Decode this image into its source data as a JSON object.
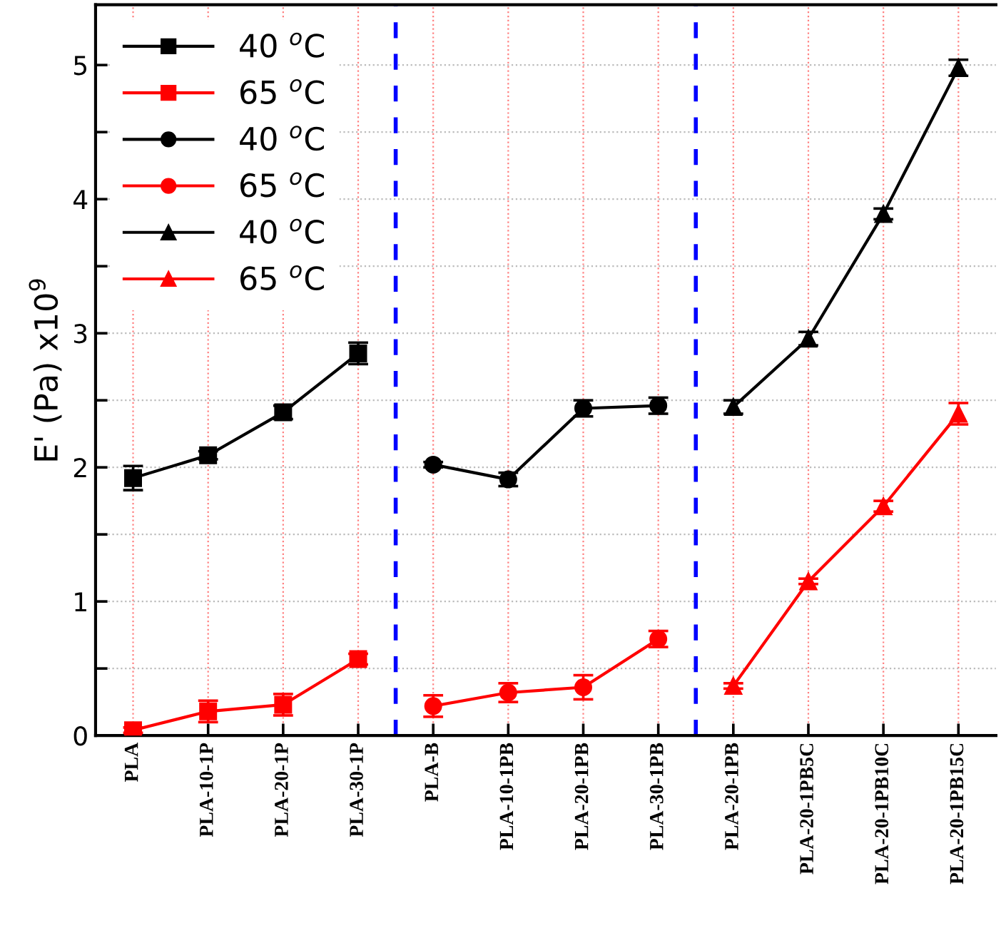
{
  "chart_data": {
    "type": "line",
    "ylabel": "E' (Pa) x10$^{9}$",
    "categories": [
      "PLA",
      "PLA-10-1P",
      "PLA-20-1P",
      "PLA-30-1P",
      "PLA-B",
      "PLA-10-1PB",
      "PLA-20-1PB",
      "PLA-30-1PB",
      "PLA-20-1PB",
      "PLA-20-1PB5C",
      "PLA-20-1PB10C",
      "PLA-20-1PB15C"
    ],
    "ylim": [
      0,
      5.45
    ],
    "yticks": [
      0,
      {
        "value": 0.5,
        "label": null
      },
      1,
      {
        "value": 1.5,
        "label": null
      },
      2,
      {
        "value": 2.5,
        "label": null
      },
      3,
      {
        "value": 3.5,
        "label": null
      },
      4,
      {
        "value": 4.5,
        "label": null
      },
      5
    ],
    "grid": true,
    "legend": "top left",
    "series": [
      {
        "name": "40 $^{o}$C",
        "color": "#000000",
        "marker": "square",
        "values": [
          1.92,
          2.09,
          2.41,
          2.85,
          null,
          null,
          null,
          null,
          null,
          null,
          null,
          null
        ],
        "errors": [
          0.09,
          0.03,
          0.05,
          0.08,
          null,
          null,
          null,
          null,
          null,
          null,
          null,
          null
        ]
      },
      {
        "name": "65 $^{o}$C",
        "color": "#ff0000",
        "marker": "square",
        "values": [
          0.04,
          0.18,
          0.23,
          0.57,
          null,
          null,
          null,
          null,
          null,
          null,
          null,
          null
        ],
        "errors": [
          0.02,
          0.08,
          0.08,
          0.04,
          null,
          null,
          null,
          null,
          null,
          null,
          null,
          null
        ]
      },
      {
        "name": "40 $^{o}$C",
        "color": "#000000",
        "marker": "circle",
        "values": [
          null,
          null,
          null,
          null,
          2.02,
          1.91,
          2.44,
          2.46,
          null,
          null,
          null,
          null
        ],
        "errors": [
          null,
          null,
          null,
          null,
          0.02,
          0.05,
          0.06,
          0.06,
          null,
          null,
          null,
          null
        ]
      },
      {
        "name": "65 $^{o}$C",
        "color": "#ff0000",
        "marker": "circle",
        "values": [
          null,
          null,
          null,
          null,
          0.22,
          0.32,
          0.36,
          0.72,
          null,
          null,
          null,
          null
        ],
        "errors": [
          null,
          null,
          null,
          null,
          0.08,
          0.07,
          0.09,
          0.06,
          null,
          null,
          null,
          null
        ]
      },
      {
        "name": "40 $^{o}$C",
        "color": "#000000",
        "marker": "triangle",
        "values": [
          null,
          null,
          null,
          null,
          null,
          null,
          null,
          null,
          2.45,
          2.96,
          3.89,
          4.98
        ],
        "errors": [
          null,
          null,
          null,
          null,
          null,
          null,
          null,
          null,
          0.05,
          0.05,
          0.04,
          0.06
        ]
      },
      {
        "name": "65 $^{o}$C",
        "color": "#ff0000",
        "marker": "triangle",
        "values": [
          null,
          null,
          null,
          null,
          null,
          null,
          null,
          null,
          0.37,
          1.15,
          1.71,
          2.4
        ],
        "errors": [
          null,
          null,
          null,
          null,
          null,
          null,
          null,
          null,
          0.02,
          0.02,
          0.04,
          0.08
        ]
      }
    ]
  }
}
